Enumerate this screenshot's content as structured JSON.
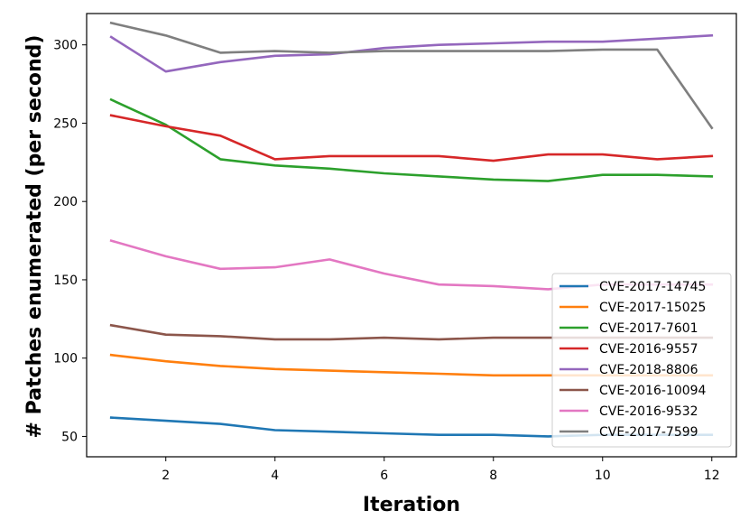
{
  "chart_data": {
    "type": "line",
    "title": "",
    "xlabel": "Iteration",
    "ylabel": "# Patches enumerated (per second)",
    "xlim": [
      0.55,
      12.45
    ],
    "ylim": [
      37,
      320
    ],
    "xticks": [
      2,
      4,
      6,
      8,
      10,
      12
    ],
    "yticks": [
      50,
      100,
      150,
      200,
      250,
      300
    ],
    "grid": false,
    "legend_position": "lower-right",
    "x": [
      1,
      2,
      3,
      4,
      5,
      6,
      7,
      8,
      9,
      10,
      11,
      12
    ],
    "series": [
      {
        "name": "CVE-2017-14745",
        "color": "#1f77b4",
        "values": [
          62,
          60,
          58,
          54,
          53,
          52,
          51,
          51,
          50,
          51,
          51,
          51
        ]
      },
      {
        "name": "CVE-2017-15025",
        "color": "#ff7f0e",
        "values": [
          102,
          98,
          95,
          93,
          92,
          91,
          90,
          89,
          89,
          89,
          89,
          89
        ]
      },
      {
        "name": "CVE-2017-7601",
        "color": "#2ca02c",
        "values": [
          265,
          249,
          227,
          223,
          221,
          218,
          216,
          214,
          213,
          217,
          217,
          216
        ]
      },
      {
        "name": "CVE-2016-9557",
        "color": "#d62728",
        "values": [
          255,
          248,
          242,
          227,
          229,
          229,
          229,
          226,
          230,
          230,
          227,
          229
        ]
      },
      {
        "name": "CVE-2018-8806",
        "color": "#9467bd",
        "values": [
          305,
          283,
          289,
          293,
          294,
          298,
          300,
          301,
          302,
          302,
          304,
          306
        ]
      },
      {
        "name": "CVE-2016-10094",
        "color": "#8c564b",
        "values": [
          121,
          115,
          114,
          112,
          112,
          113,
          112,
          113,
          113,
          113,
          113,
          113
        ]
      },
      {
        "name": "CVE-2016-9532",
        "color": "#e377c2",
        "values": [
          175,
          165,
          157,
          158,
          163,
          154,
          147,
          146,
          144,
          147,
          147,
          147
        ]
      },
      {
        "name": "CVE-2017-7599",
        "color": "#7f7f7f",
        "values": [
          314,
          306,
          295,
          296,
          295,
          296,
          296,
          296,
          296,
          297,
          297,
          247
        ]
      }
    ]
  }
}
